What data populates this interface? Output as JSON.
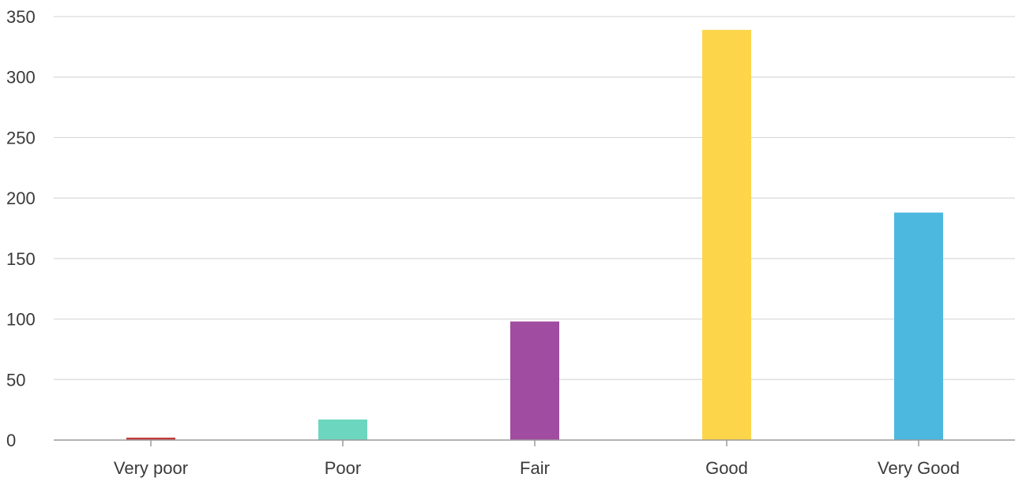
{
  "chart_data": {
    "type": "bar",
    "title": "",
    "xlabel": "",
    "ylabel": "",
    "categories": [
      "Very poor",
      "Poor",
      "Fair",
      "Good",
      "Very Good"
    ],
    "values": [
      2,
      17,
      98,
      339,
      188
    ],
    "colors": [
      "#c23b3b",
      "#6dd6be",
      "#a04ca0",
      "#fdd54a",
      "#4cb8e0"
    ],
    "ylim": [
      0,
      350
    ],
    "yticks": [
      0,
      50,
      100,
      150,
      200,
      250,
      300,
      350
    ],
    "grid": true,
    "legend": "none"
  }
}
